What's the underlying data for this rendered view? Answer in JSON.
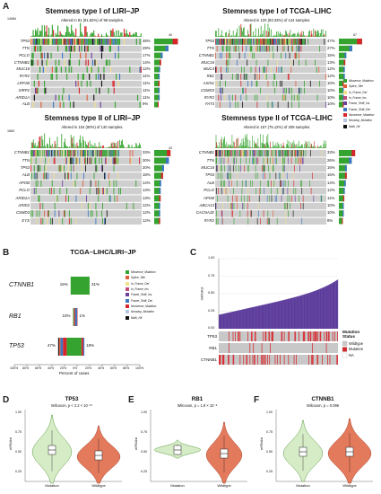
{
  "colors": {
    "missense": "#35a32f",
    "splice": "#e05c3a",
    "in_frame_del": "#f2e18a",
    "in_frame_ins": "#c24b7a",
    "frame_shift_ins": "#6a3fa0",
    "frame_shift_del": "#3d77c4",
    "nonsense": "#d7262b",
    "nonstop": "#b7c6e0",
    "multi_hit": "#111111",
    "bg": "#cfcfcf",
    "purple": "#5b3a9a",
    "violin_green": "#d6ecc6",
    "violin_red": "#e47a5c",
    "mutation_red": "#d7262b",
    "wildtype_grey": "#c8c8c8"
  },
  "panels": {
    "a": "A",
    "b": "B",
    "c": "C",
    "d": "D",
    "e": "E",
    "f": "F"
  },
  "legend": [
    {
      "label": "Missense_Mutation",
      "key": "missense"
    },
    {
      "label": "Splice_Site",
      "key": "splice"
    },
    {
      "label": "In_Frame_Del",
      "key": "in_frame_del"
    },
    {
      "label": "In_Frame_Ins",
      "key": "in_frame_ins"
    },
    {
      "label": "Frame_Shift_Ins",
      "key": "frame_shift_ins"
    },
    {
      "label": "Frame_Shift_Del",
      "key": "frame_shift_del"
    },
    {
      "label": "Nonsense_Mutation",
      "key": "nonsense"
    },
    {
      "label": "Nonstop_Mutation",
      "key": "nonstop"
    },
    {
      "label": "Multi_Hit",
      "key": "multi_hit"
    }
  ],
  "oncoprints": [
    {
      "title": "Stemness type I of LIRI–JP",
      "subtitle": "Altered in 81 (81.82%) of 99 samples.",
      "ymax": "14984",
      "xmax": "40",
      "genes": [
        "TP53",
        "TTN",
        "PCLO",
        "CTNNB1",
        "MUC16",
        "RYR2",
        "LRP1B",
        "XIRP2",
        "ARID1A",
        "ALB"
      ],
      "pcts": [
        "48%",
        "29%",
        "17%",
        "14%",
        "12%",
        "11%",
        "11%",
        "11%",
        "11%",
        "9%"
      ],
      "bars": [
        48,
        29,
        17,
        14,
        12,
        11,
        11,
        11,
        11,
        9
      ]
    },
    {
      "title": "Stemness type I of TCGA–LIHC",
      "subtitle": "Altered in 120 (83.33%) of 144 samples.",
      "ymax": "",
      "xmax": "67",
      "genes": [
        "TP53",
        "TTN",
        "CTNNB1",
        "MUC16",
        "MUC4",
        "RB1",
        "AXIN1",
        "CSMD3",
        "RYR2",
        "FAT3"
      ],
      "pcts": [
        "47%",
        "27%",
        "15%",
        "13%",
        "12%",
        "12%",
        "10%",
        "10%",
        "10%",
        "10%"
      ],
      "bars": [
        47,
        27,
        15,
        13,
        12,
        12,
        10,
        10,
        10,
        10
      ]
    },
    {
      "title": "Stemness type II of LIRI–JP",
      "subtitle": "Altered in 104 (80%) of 130 samples.",
      "ymax": "1660",
      "xmax": "43",
      "genes": [
        "CTNNB1",
        "TTN",
        "TP53",
        "ALB",
        "APOB",
        "PCLO",
        "ARID1A",
        "ARID2",
        "CSMD3",
        "EYS"
      ],
      "pcts": [
        "33%",
        "30%",
        "20%",
        "18%",
        "14%",
        "13%",
        "13%",
        "12%",
        "12%",
        "12%"
      ],
      "bars": [
        33,
        30,
        20,
        18,
        14,
        13,
        13,
        12,
        12,
        12
      ]
    },
    {
      "title": "Stemness type II of TCGA–LIHC",
      "subtitle": "Altered in 157 (75.12%) of 209 samples.",
      "ymax": "",
      "xmax": "",
      "genes": [
        "CTNNB1",
        "TTN",
        "MUC16",
        "TP53",
        "ALB",
        "PCLO",
        "APOB",
        "ABCA13",
        "CACNA1E",
        "RYR2"
      ],
      "pcts": [
        "33%",
        "26%",
        "16%",
        "16%",
        "14%",
        "12%",
        "11%",
        "10%",
        "10%",
        "8%"
      ],
      "bars": [
        33,
        26,
        16,
        16,
        14,
        12,
        11,
        10,
        10,
        8
      ]
    }
  ],
  "panel_b": {
    "title": "TCGA–LIHC/LIRI–JP",
    "xlabel": "Percent of cases",
    "ticks": [
      "100%",
      "80%",
      "60%",
      "40%",
      "20%",
      "0%",
      "20%",
      "40%",
      "60%",
      "80%",
      "100%"
    ],
    "rows": [
      {
        "gene": "CTNNB1",
        "left": "16%",
        "right": "31%",
        "lv": 16,
        "rv": 31
      },
      {
        "gene": "RB1",
        "left": "10%",
        "right": "1%",
        "lv": 10,
        "rv": 1
      },
      {
        "gene": "TP53",
        "left": "47%",
        "right": "18%",
        "lv": 47,
        "rv": 18
      }
    ]
  },
  "panel_c": {
    "ylabel": "mRNAsi",
    "yticks": [
      "0.00",
      "0.25",
      "0.50",
      "0.75",
      "1.00"
    ],
    "tracks": [
      "TP53",
      "RB1",
      "CTNNB1"
    ],
    "legend_title": "Mutation\nStatus",
    "legend_title_1": "Mutation",
    "legend_title_2": "Status",
    "legend_items": [
      {
        "label": "Wildtype",
        "key": "wildtype_grey"
      },
      {
        "label": "Mutation",
        "key": "mutation_red"
      },
      {
        "label": "NA",
        "key": "bg_white"
      }
    ]
  },
  "violins": [
    {
      "title": "TP53",
      "sub": "Wilcoxon, p < 2.2 × 10⁻¹⁶",
      "ylabel": "mRNAsi",
      "xlabels": [
        "Mutation",
        "Wildtype"
      ],
      "yticks": [
        "1.00",
        "0.75",
        "0.50",
        "0.25"
      ]
    },
    {
      "title": "RB1",
      "sub": "Wilcoxon, p = 1.9 × 10⁻⁸",
      "ylabel": "mRNAsi",
      "xlabels": [
        "Mutation",
        "Wildtype"
      ],
      "yticks": [
        "1.00",
        "0.75",
        "0.50",
        "0.25"
      ]
    },
    {
      "title": "CTNNB1",
      "sub": "Wilcoxon, p = 0.096",
      "ylabel": "mRNAsi",
      "xlabels": [
        "Mutation",
        "Wildtype"
      ],
      "yticks": [
        "1.00",
        "0.75",
        "0.50",
        "0.25"
      ]
    }
  ]
}
